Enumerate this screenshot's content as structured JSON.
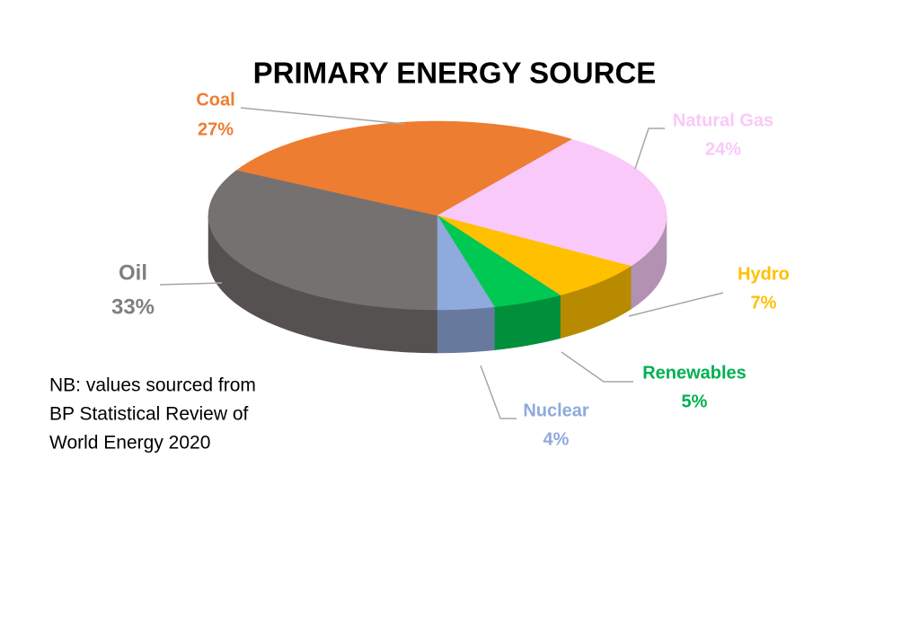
{
  "chart_data": {
    "type": "pie3d",
    "title": "PRIMARY ENERGY SOURCE",
    "categories": [
      "Oil",
      "Coal",
      "Natural Gas",
      "Hydro",
      "Renewables",
      "Nuclear"
    ],
    "values": [
      33,
      27,
      24,
      7,
      5,
      4
    ],
    "value_labels": [
      "33%",
      "27%",
      "24%",
      "7%",
      "5%",
      "4%"
    ],
    "colors": [
      "#767171",
      "#ed7d31",
      "#f9c9f9",
      "#ffc000",
      "#00c853",
      "#8faadc"
    ],
    "note": [
      "NB: values sourced from",
      "BP Statistical Review of",
      "World Energy 2020"
    ]
  }
}
